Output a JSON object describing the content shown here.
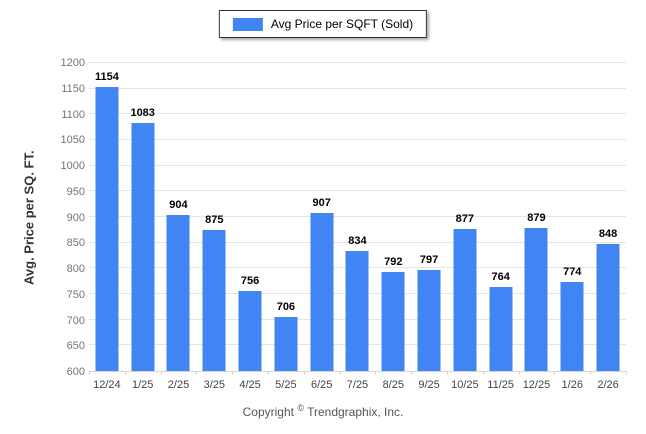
{
  "legend": {
    "label": "Avg Price per SQFT (Sold)"
  },
  "footer": {
    "prefix": "Copyright",
    "symbol": "©",
    "company": "Trendgraphix, Inc."
  },
  "colors": {
    "bar_fill": "#4184f3",
    "legend_border": "#2a3550",
    "grid_line": "#e6e6e6",
    "axis_line": "#d6d6d6",
    "y_tick_label": "#757575",
    "x_tick_label": "#444444",
    "footer_text": "#555555"
  },
  "chart_data": {
    "type": "bar",
    "title": "",
    "series_name": "Avg Price per SQFT (Sold)",
    "categories": [
      "12/24",
      "1/25",
      "2/25",
      "3/25",
      "4/25",
      "5/25",
      "6/25",
      "7/25",
      "8/25",
      "9/25",
      "10/25",
      "11/25",
      "12/25",
      "1/26",
      "2/26"
    ],
    "values": [
      1154,
      1083,
      904,
      875,
      756,
      706,
      907,
      834,
      792,
      797,
      877,
      764,
      879,
      774,
      848
    ],
    "xlabel": "",
    "ylabel": "Avg. Price per SQ. FT.",
    "ylim": [
      600,
      1200
    ],
    "ytick_step": 50,
    "grid": true,
    "legend_position": "top-center",
    "value_labels": true
  }
}
